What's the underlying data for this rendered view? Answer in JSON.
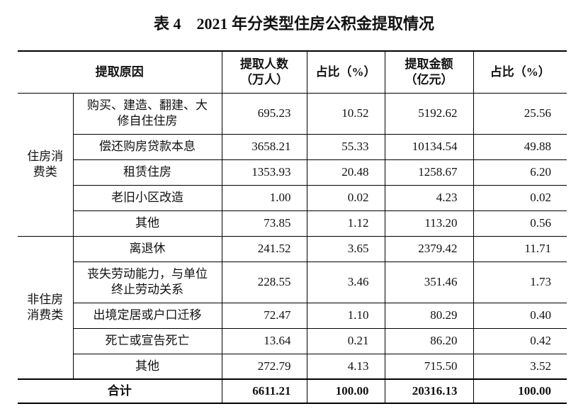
{
  "title": "表 4　2021 年分类型住房公积金提取情况",
  "table": {
    "header": [
      "提取原因",
      [
        "提取人数",
        "（万人）"
      ],
      "占比（%）",
      [
        "提取金额",
        "（亿元）"
      ],
      "占比（%）"
    ],
    "groups": [
      {
        "label": [
          "住房消",
          "费类"
        ],
        "rows": [
          {
            "reason": [
              "购买、建造、翻建、大",
              "修自住住房"
            ],
            "cells": [
              "695.23",
              "10.52",
              "5192.62",
              "25.56"
            ]
          },
          {
            "reason": [
              "偿还购房贷款本息"
            ],
            "cells": [
              "3658.21",
              "55.33",
              "10134.54",
              "49.88"
            ]
          },
          {
            "reason": [
              "租赁住房"
            ],
            "cells": [
              "1353.93",
              "20.48",
              "1258.67",
              "6.20"
            ]
          },
          {
            "reason": [
              "老旧小区改造"
            ],
            "cells": [
              "1.00",
              "0.02",
              "4.23",
              "0.02"
            ]
          },
          {
            "reason": [
              "其他"
            ],
            "cells": [
              "73.85",
              "1.12",
              "113.20",
              "0.56"
            ]
          }
        ]
      },
      {
        "label": [
          "非住房",
          "消费类"
        ],
        "rows": [
          {
            "reason": [
              "离退休"
            ],
            "cells": [
              "241.52",
              "3.65",
              "2379.42",
              "11.71"
            ]
          },
          {
            "reason": [
              "丧失劳动能力，与单位",
              "终止劳动关系"
            ],
            "cells": [
              "228.55",
              "3.46",
              "351.46",
              "1.73"
            ]
          },
          {
            "reason": [
              "出境定居或户口迁移"
            ],
            "cells": [
              "72.47",
              "1.10",
              "80.29",
              "0.40"
            ]
          },
          {
            "reason": [
              "死亡或宣告死亡"
            ],
            "cells": [
              "13.64",
              "0.21",
              "86.20",
              "0.42"
            ]
          },
          {
            "reason": [
              "其他"
            ],
            "cells": [
              "272.79",
              "4.13",
              "715.50",
              "3.52"
            ]
          }
        ]
      }
    ],
    "total": {
      "label": "合计",
      "cells": [
        "6611.21",
        "100.00",
        "20316.13",
        "100.00"
      ]
    }
  }
}
